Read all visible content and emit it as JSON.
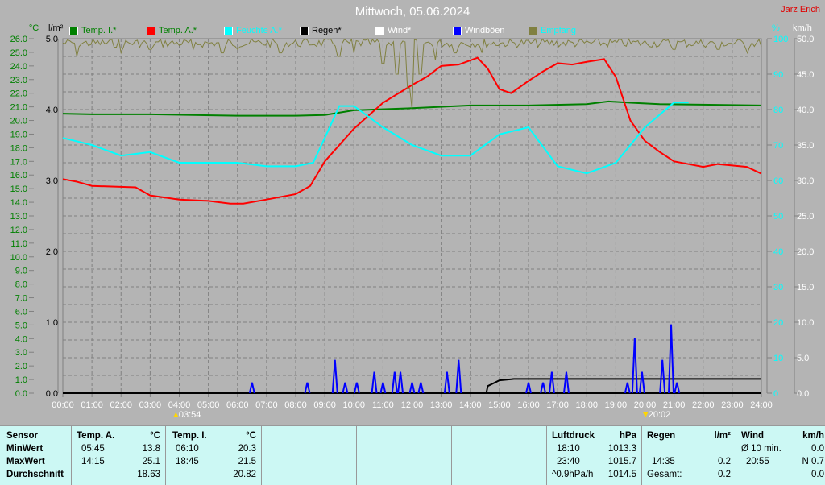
{
  "title": "Mittwoch, 05.06.2024",
  "author": "Jarz Erich",
  "legend": [
    {
      "label": "Temp. I.*",
      "color": "#008000",
      "text_color": "#008000"
    },
    {
      "label": "Temp. A.*",
      "color": "#ff0000",
      "text_color": "#008000"
    },
    {
      "label": "Feuchte A.*",
      "color": "#00ffff",
      "text_color": "#00ffff"
    },
    {
      "label": "Regen*",
      "color": "#000000",
      "text_color": "#000000"
    },
    {
      "label": "Wind*",
      "color": "#ffffff",
      "text_color": "#ffffff"
    },
    {
      "label": "Windböen",
      "color": "#0000ff",
      "text_color": "#ffffff"
    },
    {
      "label": "Empfang",
      "color": "#808040",
      "text_color": "#00ffff"
    }
  ],
  "chart_data": {
    "type": "line",
    "title": "Mittwoch, 05.06.2024",
    "x_ticks": [
      "00:00",
      "01:00",
      "02:00",
      "03:00",
      "04:00",
      "05:00",
      "06:00",
      "07:00",
      "08:00",
      "09:00",
      "10:00",
      "11:00",
      "12:00",
      "13:00",
      "14:00",
      "15:00",
      "16:00",
      "17:00",
      "18:00",
      "19:00",
      "20:00",
      "21:00",
      "22:00",
      "23:00",
      "24:00"
    ],
    "axes": {
      "temp": {
        "unit": "°C",
        "range": [
          0,
          26
        ],
        "step": 1,
        "color": "#008000"
      },
      "rain": {
        "unit": "l/m²",
        "range": [
          0,
          5
        ],
        "ticks": [
          "0.0",
          "1.0",
          "2.0",
          "3.0",
          "4.0",
          "5.0"
        ],
        "color": "#000000"
      },
      "humidity": {
        "unit": "%",
        "range": [
          0,
          100
        ],
        "step": 10,
        "color": "#00ffff"
      },
      "wind": {
        "unit": "km/h",
        "range": [
          0,
          50
        ],
        "step": 5,
        "color": "#ffffff"
      }
    },
    "grid": true,
    "sunrise": "03:54",
    "sunset": "20:02",
    "series": [
      {
        "name": "Temp. I.*",
        "axis": "temp",
        "color": "#008000",
        "points": [
          [
            0,
            20.5
          ],
          [
            1,
            20.45
          ],
          [
            3,
            20.45
          ],
          [
            6,
            20.35
          ],
          [
            8,
            20.35
          ],
          [
            9,
            20.4
          ],
          [
            10,
            20.75
          ],
          [
            12,
            20.9
          ],
          [
            14,
            21.1
          ],
          [
            16,
            21.1
          ],
          [
            18,
            21.2
          ],
          [
            18.75,
            21.4
          ],
          [
            19.5,
            21.3
          ],
          [
            20.5,
            21.2
          ],
          [
            24,
            21.1
          ]
        ]
      },
      {
        "name": "Temp. A.*",
        "axis": "temp",
        "color": "#ff0000",
        "points": [
          [
            0,
            15.7
          ],
          [
            0.5,
            15.5
          ],
          [
            1,
            15.2
          ],
          [
            2.5,
            15.1
          ],
          [
            3,
            14.5
          ],
          [
            4,
            14.2
          ],
          [
            5,
            14.1
          ],
          [
            5.75,
            13.9
          ],
          [
            6.2,
            13.9
          ],
          [
            7,
            14.2
          ],
          [
            8,
            14.6
          ],
          [
            8.5,
            15.2
          ],
          [
            9,
            17.0
          ],
          [
            10,
            19.4
          ],
          [
            11,
            21.3
          ],
          [
            12,
            22.6
          ],
          [
            12.5,
            23.2
          ],
          [
            13,
            24.0
          ],
          [
            13.6,
            24.1
          ],
          [
            14.25,
            24.6
          ],
          [
            14.6,
            23.8
          ],
          [
            15,
            22.3
          ],
          [
            15.4,
            22.0
          ],
          [
            16,
            22.9
          ],
          [
            16.5,
            23.6
          ],
          [
            17,
            24.2
          ],
          [
            17.5,
            24.1
          ],
          [
            18,
            24.3
          ],
          [
            18.6,
            24.5
          ],
          [
            19,
            23.2
          ],
          [
            19.5,
            20.0
          ],
          [
            20,
            18.5
          ],
          [
            20.5,
            17.7
          ],
          [
            21,
            17.0
          ],
          [
            21.5,
            16.8
          ],
          [
            22,
            16.6
          ],
          [
            22.5,
            16.8
          ],
          [
            23,
            16.7
          ],
          [
            23.5,
            16.6
          ],
          [
            24,
            16.1
          ]
        ]
      },
      {
        "name": "Feuchte A.*",
        "axis": "humidity",
        "color": "#00ffff",
        "points": [
          [
            0,
            72
          ],
          [
            1,
            70
          ],
          [
            2,
            67
          ],
          [
            3,
            68
          ],
          [
            4,
            65
          ],
          [
            5,
            65
          ],
          [
            6,
            65
          ],
          [
            7,
            64
          ],
          [
            8,
            64
          ],
          [
            8.6,
            65
          ],
          [
            9,
            72
          ],
          [
            9.5,
            81
          ],
          [
            10,
            81
          ],
          [
            11,
            75
          ],
          [
            12,
            70
          ],
          [
            13,
            67
          ],
          [
            14,
            67
          ],
          [
            15,
            73
          ],
          [
            16,
            75
          ],
          [
            17,
            64
          ],
          [
            18,
            62
          ],
          [
            19,
            65
          ],
          [
            20,
            75
          ],
          [
            21,
            82
          ],
          [
            21.5,
            82
          ]
        ]
      },
      {
        "name": "Regen*",
        "axis": "rain",
        "color": "#000000",
        "points": [
          [
            0,
            0
          ],
          [
            14.55,
            0
          ],
          [
            14.6,
            0.1
          ],
          [
            15,
            0.18
          ],
          [
            15.5,
            0.2
          ],
          [
            24,
            0.2
          ]
        ]
      },
      {
        "name": "Windböen",
        "axis": "wind",
        "color": "#0000ff",
        "spikes": [
          [
            6.5,
            1.5
          ],
          [
            8.4,
            1.5
          ],
          [
            9.35,
            4.7
          ],
          [
            9.7,
            1.5
          ],
          [
            10.1,
            1.5
          ],
          [
            10.7,
            3
          ],
          [
            11,
            1.5
          ],
          [
            11.4,
            3
          ],
          [
            11.6,
            3
          ],
          [
            12,
            1.5
          ],
          [
            12.3,
            1.5
          ],
          [
            13.2,
            3
          ],
          [
            13.6,
            4.7
          ],
          [
            16,
            1.5
          ],
          [
            16.5,
            1.5
          ],
          [
            16.8,
            3
          ],
          [
            17.3,
            3
          ],
          [
            19.4,
            1.5
          ],
          [
            19.65,
            7.8
          ],
          [
            19.9,
            3
          ],
          [
            20.6,
            4.7
          ],
          [
            20.9,
            9.7
          ],
          [
            21.1,
            1.5
          ]
        ]
      },
      {
        "name": "Empfang",
        "axis": "humidity",
        "color": "#808040",
        "noisy_near": 100,
        "dips": [
          [
            0.5,
            95
          ],
          [
            2,
            96
          ],
          [
            3,
            97
          ],
          [
            4.5,
            97
          ],
          [
            5.5,
            96
          ],
          [
            6,
            97
          ],
          [
            7.5,
            96
          ],
          [
            9.5,
            95
          ],
          [
            10,
            96
          ],
          [
            11,
            93
          ],
          [
            11.5,
            90
          ],
          [
            11.9,
            86
          ],
          [
            12,
            80
          ],
          [
            12.3,
            90
          ],
          [
            12.8,
            94
          ],
          [
            13.5,
            96
          ],
          [
            14.4,
            96
          ],
          [
            21,
            97
          ],
          [
            22.5,
            97
          ],
          [
            23.5,
            96
          ]
        ]
      }
    ]
  },
  "table": {
    "sensor": {
      "header": "Sensor",
      "rows": [
        "MinWert",
        "MaxWert",
        "Durchschnitt"
      ]
    },
    "temp_a": {
      "header": "Temp. A.",
      "unit": "°C",
      "min_time": "05:45",
      "min": "13.8",
      "max_time": "14:15",
      "max": "25.1",
      "avg": "18.63"
    },
    "temp_i": {
      "header": "Temp. I.",
      "unit": "°C",
      "min_time": "06:10",
      "min": "20.3",
      "max_time": "18:45",
      "max": "21.5",
      "avg": "20.82"
    },
    "pressure": {
      "header": "Luftdruck",
      "unit": "hPa",
      "min_time": "18:10",
      "min": "1013.3",
      "max_time": "23:40",
      "max": "1015.7",
      "trend": "^0.9hPa/h",
      "avg": "1014.5"
    },
    "rain": {
      "header": "Regen",
      "unit": "l/m²",
      "max_time": "14:35",
      "max": "0.2",
      "total_label": "Gesamt:",
      "total": "0.2"
    },
    "wind": {
      "header": "Wind",
      "unit": "km/h",
      "avg_label": "Ø 10 min.",
      "avg": "0.0",
      "max_time": "20:55",
      "max": "N 0.7",
      "last": "0.0"
    }
  }
}
